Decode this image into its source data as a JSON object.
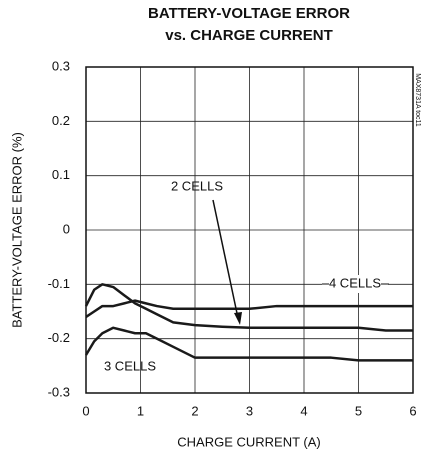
{
  "chart_data": {
    "type": "line",
    "title": "BATTERY-VOLTAGE ERROR",
    "subtitle": "vs. CHARGE CURRENT",
    "xlabel": "CHARGE CURRENT (A)",
    "ylabel": "BATTERY-VOLTAGE ERROR (%)",
    "code": "MAX8731A toc11",
    "x": [
      0,
      0.15,
      0.3,
      0.5,
      0.7,
      0.9,
      1.1,
      1.3,
      1.6,
      2,
      2.5,
      3,
      3.5,
      4,
      4.5,
      5,
      5.5,
      6
    ],
    "series": [
      {
        "name": "4 CELLS",
        "color": "#1a1a1a",
        "values": [
          -0.16,
          -0.15,
          -0.14,
          -0.14,
          -0.135,
          -0.13,
          -0.135,
          -0.14,
          -0.145,
          -0.145,
          -0.145,
          -0.145,
          -0.14,
          -0.14,
          -0.14,
          -0.14,
          -0.14,
          -0.14
        ]
      },
      {
        "name": "2 CELLS",
        "color": "#1a1a1a",
        "values": [
          -0.14,
          -0.11,
          -0.1,
          -0.105,
          -0.12,
          -0.135,
          -0.145,
          -0.155,
          -0.17,
          -0.175,
          -0.178,
          -0.18,
          -0.18,
          -0.18,
          -0.18,
          -0.18,
          -0.185,
          -0.185
        ]
      },
      {
        "name": "3 CELLS",
        "color": "#1a1a1a",
        "values": [
          -0.23,
          -0.205,
          -0.19,
          -0.18,
          -0.185,
          -0.19,
          -0.19,
          -0.2,
          -0.215,
          -0.235,
          -0.235,
          -0.235,
          -0.235,
          -0.235,
          -0.235,
          -0.24,
          -0.24,
          -0.24
        ]
      }
    ],
    "xlim": [
      0,
      6
    ],
    "xticks": [
      0,
      1,
      2,
      3,
      4,
      5,
      6
    ],
    "ylim": [
      -0.3,
      0.3
    ],
    "yticks": [
      0.3,
      0.2,
      0.1,
      0,
      -0.1,
      -0.2,
      -0.3
    ],
    "grid": true
  }
}
